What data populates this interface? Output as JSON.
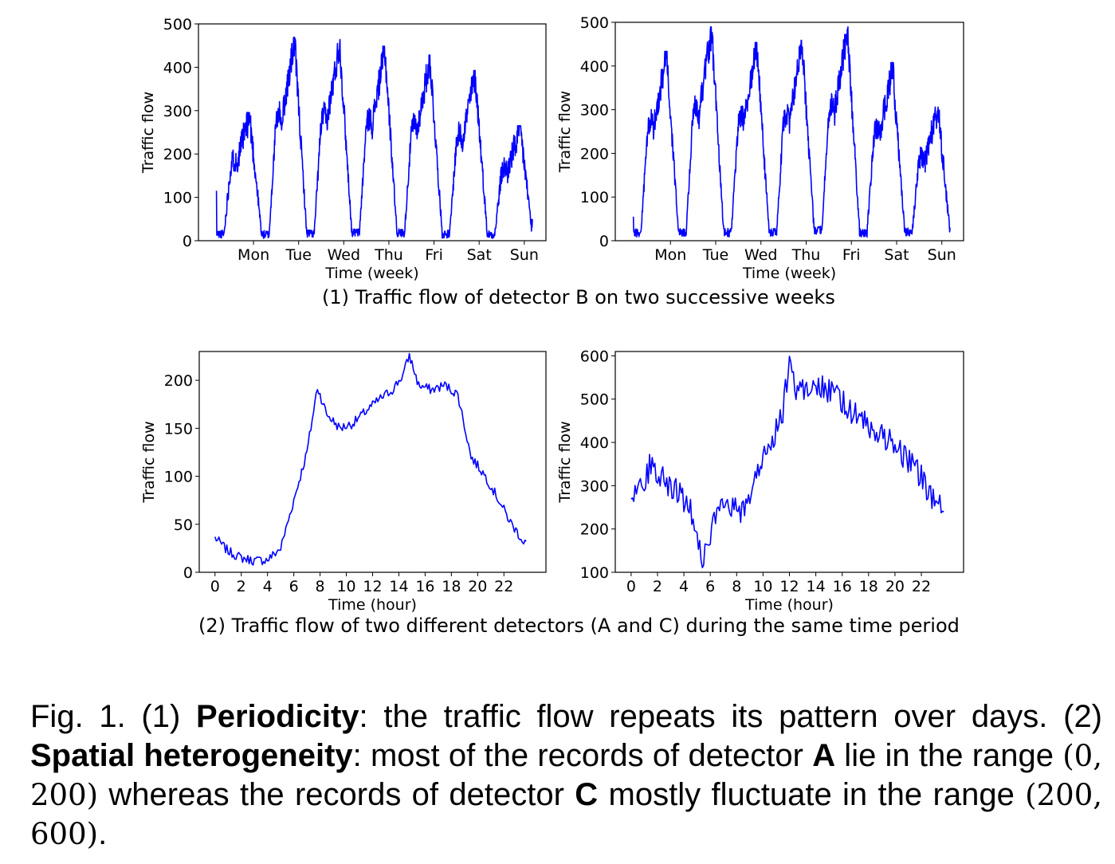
{
  "chart_data": [
    {
      "type": "line",
      "xlabel": "Time (week)",
      "ylabel": "Traffic flow",
      "xticks": [
        "Mon",
        "Tue",
        "Wed",
        "Thu",
        "Fri",
        "Sat",
        "Sun"
      ],
      "ylim": [
        0,
        500
      ],
      "yticks": [
        0,
        100,
        200,
        300,
        400,
        500
      ],
      "series_color": "#0000ff",
      "daily_peaks": [
        290,
        460,
        455,
        440,
        420,
        385,
        260
      ],
      "daily_minimums": [
        10,
        5,
        8,
        10,
        10,
        8,
        10
      ],
      "start_value": 115,
      "end_value": 50
    },
    {
      "type": "line",
      "xlabel": "Time (week)",
      "ylabel": "Traffic flow",
      "xticks": [
        "Mon",
        "Tue",
        "Wed",
        "Thu",
        "Fri",
        "Sat",
        "Sun"
      ],
      "ylim": [
        0,
        500
      ],
      "yticks": [
        0,
        100,
        200,
        300,
        400,
        500
      ],
      "series_color": "#0000ff",
      "daily_peaks": [
        425,
        480,
        445,
        450,
        480,
        400,
        300
      ],
      "daily_minimums": [
        10,
        10,
        10,
        10,
        15,
        10,
        15
      ],
      "start_value": 55,
      "end_value": 30
    },
    {
      "type": "line",
      "xlabel": "Time (hour)",
      "ylabel": "Traffic flow",
      "xticks": [
        0,
        2,
        4,
        6,
        8,
        10,
        12,
        14,
        16,
        18,
        20,
        22
      ],
      "ylim": [
        0,
        230
      ],
      "yticks": [
        0,
        50,
        100,
        150,
        200
      ],
      "series_color": "#0000ff",
      "x": [
        0,
        1,
        2,
        3,
        4,
        5,
        6,
        7,
        7.8,
        8.5,
        9.5,
        10.5,
        11.5,
        12.5,
        13.5,
        14.3,
        14.8,
        15.5,
        16.5,
        17.5,
        18.5,
        19.5,
        20.5,
        21.5,
        22.5,
        23.5
      ],
      "y": [
        36,
        22,
        15,
        12,
        13,
        25,
        75,
        125,
        193,
        165,
        150,
        155,
        168,
        180,
        190,
        205,
        226,
        195,
        190,
        195,
        185,
        120,
        102,
        78,
        52,
        32
      ]
    },
    {
      "type": "line",
      "xlabel": "Time (hour)",
      "ylabel": "Traffic flow",
      "xticks": [
        0,
        2,
        4,
        6,
        8,
        10,
        12,
        14,
        16,
        18,
        20,
        22
      ],
      "ylim": [
        100,
        610
      ],
      "yticks": [
        100,
        200,
        300,
        400,
        500,
        600
      ],
      "series_color": "#0000ff",
      "x": [
        0,
        1,
        1.5,
        2.5,
        3.5,
        4.5,
        5,
        5.5,
        6.5,
        7.5,
        8.5,
        9.5,
        10.5,
        11.5,
        12,
        12.5,
        13.5,
        14.5,
        15.5,
        16.5,
        17.5,
        18.5,
        19.5,
        20.5,
        21.5,
        22.5,
        23.2,
        23.8
      ],
      "y": [
        285,
        305,
        355,
        315,
        285,
        255,
        180,
        130,
        235,
        250,
        235,
        330,
        395,
        470,
        595,
        520,
        530,
        530,
        505,
        480,
        450,
        420,
        410,
        375,
        345,
        290,
        245,
        260
      ]
    }
  ],
  "panel_captions": {
    "top": "(1) Traffic flow of detector B on two successive weeks",
    "bottom": "(2) Traffic flow of two different detectors (A and C) during the same time period"
  },
  "figure_caption": {
    "t1": "Fig. 1. (1) ",
    "b1": "Periodicity",
    "t2": ": the traffic flow repeats its pattern over days. (2) ",
    "b2": "Spatial heterogeneity",
    "t3": ": most of the records of detector ",
    "b3": "A",
    "t4": " lie in the range ",
    "m1": "(0, 200)",
    "t5": " whereas the records of detector ",
    "b4": "C",
    "t6": " mostly fluctuate in the range ",
    "m2": "(200, 600)",
    "t7": "."
  }
}
